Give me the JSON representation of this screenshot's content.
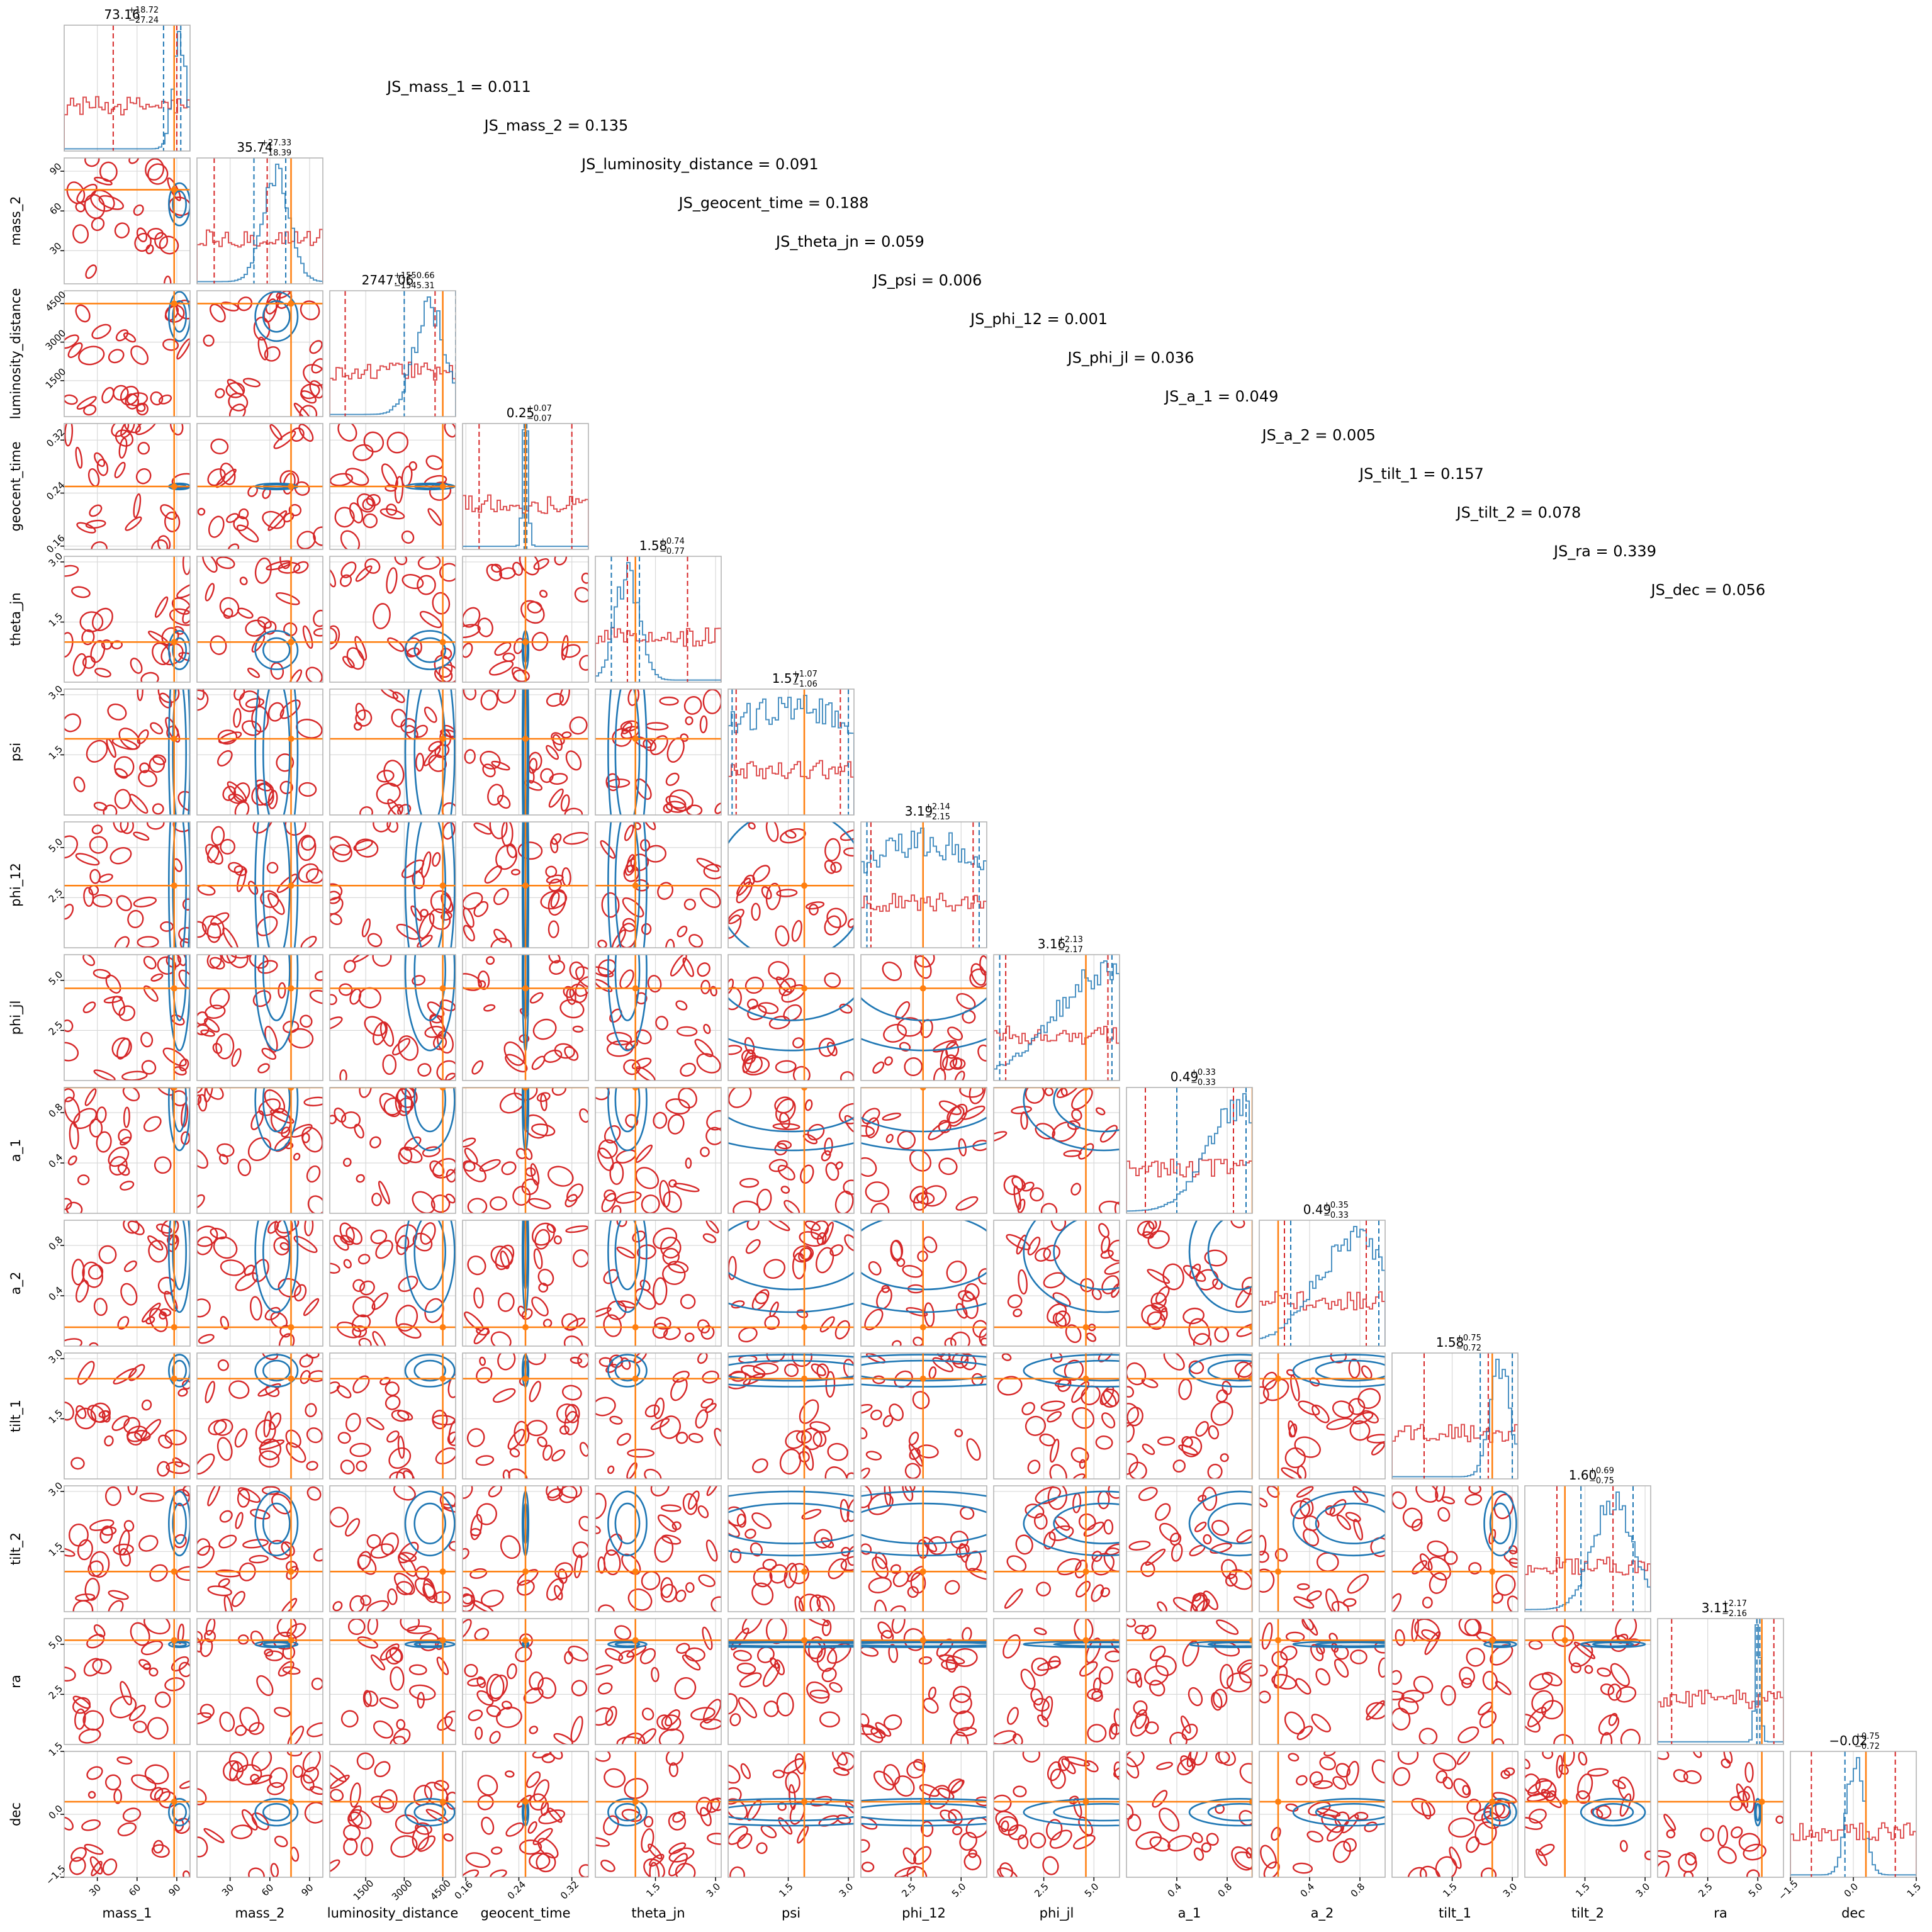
{
  "chart_data": {
    "type": "corner",
    "parameters": [
      "mass_1",
      "mass_2",
      "luminosity_distance",
      "geocent_time",
      "theta_jn",
      "psi",
      "phi_12",
      "phi_jl",
      "a_1",
      "a_2",
      "tilt_1",
      "tilt_2",
      "ra",
      "dec"
    ],
    "ranges": [
      [
        5,
        100
      ],
      [
        5,
        100
      ],
      [
        100,
        5000
      ],
      [
        0.155,
        0.345
      ],
      [
        0,
        3.14
      ],
      [
        0,
        3.14
      ],
      [
        0,
        6.28
      ],
      [
        0,
        6.28
      ],
      [
        0,
        1
      ],
      [
        0,
        1
      ],
      [
        0,
        3.14
      ],
      [
        0,
        3.14
      ],
      [
        0,
        6.28
      ],
      [
        -1.5,
        1.5
      ]
    ],
    "ticks": [
      [
        30,
        60,
        90
      ],
      [
        30,
        60,
        90
      ],
      [
        1500,
        3000,
        4500
      ],
      [
        0.16,
        0.24,
        0.32
      ],
      [
        1.5,
        3.0
      ],
      [
        1.5,
        3.0
      ],
      [
        2.5,
        5.0
      ],
      [
        2.5,
        5.0
      ],
      [
        0.4,
        0.8
      ],
      [
        0.4,
        0.8
      ],
      [
        1.5,
        3.0
      ],
      [
        1.5,
        3.0
      ],
      [
        2.5,
        5.0
      ],
      [
        -1.5,
        0.0,
        1.5
      ]
    ],
    "tick_labels": [
      [
        "30",
        "60",
        "90"
      ],
      [
        "30",
        "60",
        "90"
      ],
      [
        "1500",
        "3000",
        "4500"
      ],
      [
        "0.16",
        "0.24",
        "0.32"
      ],
      [
        "1.5",
        "3.0"
      ],
      [
        "1.5",
        "3.0"
      ],
      [
        "2.5",
        "5.0"
      ],
      [
        "2.5",
        "5.0"
      ],
      [
        "0.4",
        "0.8"
      ],
      [
        "0.4",
        "0.8"
      ],
      [
        "1.5",
        "3.0"
      ],
      [
        "1.5",
        "3.0"
      ],
      [
        "2.5",
        "5.0"
      ],
      [
        "−1.5",
        "0.0",
        "1.5"
      ]
    ],
    "titles": [
      {
        "median": "73.16",
        "plus": "+18.72",
        "minus": "−27.24"
      },
      {
        "median": "35.74",
        "plus": "+27.33",
        "minus": "−18.39"
      },
      {
        "median": "2747.06",
        "plus": "+1550.66",
        "minus": "−1545.31"
      },
      {
        "median": "0.25",
        "plus": "+0.07",
        "minus": "−0.07"
      },
      {
        "median": "1.58",
        "plus": "+0.74",
        "minus": "−0.77"
      },
      {
        "median": "1.57",
        "plus": "+1.07",
        "minus": "−1.06"
      },
      {
        "median": "3.19",
        "plus": "+2.14",
        "minus": "−2.15"
      },
      {
        "median": "3.16",
        "plus": "+2.13",
        "minus": "−2.17"
      },
      {
        "median": "0.49",
        "plus": "+0.33",
        "minus": "−0.33"
      },
      {
        "median": "0.49",
        "plus": "+0.35",
        "minus": "−0.33"
      },
      {
        "median": "1.58",
        "plus": "+0.75",
        "minus": "−0.72"
      },
      {
        "median": "1.60",
        "plus": "+0.69",
        "minus": "−0.75"
      },
      {
        "median": "3.11",
        "plus": "+2.17",
        "minus": "−2.16"
      },
      {
        "median": "−0.02",
        "plus": "+0.75",
        "minus": "−0.72"
      }
    ],
    "truths": [
      88,
      76,
      4500,
      0.25,
      1.0,
      1.9,
      3.1,
      4.6,
      1.0,
      0.15,
      2.5,
      1.0,
      5.2,
      0.3
    ],
    "blue_posterior": {
      "centers": [
        92,
        65,
        4000,
        0.25,
        0.8,
        1.57,
        3.14,
        5.5,
        0.9,
        0.75,
        2.7,
        2.2,
        5.0,
        0.05
      ],
      "widths": [
        5,
        10,
        600,
        0.002,
        0.3,
        2.5,
        4,
        2.5,
        0.25,
        0.3,
        0.25,
        0.5,
        0.05,
        0.2
      ]
    },
    "blue_quantiles": [
      [
        80,
        93
      ],
      [
        48,
        72
      ],
      [
        3000,
        5000
      ],
      [
        0.248,
        0.252
      ],
      [
        0.4,
        1.1
      ],
      [
        0.1,
        3.0
      ],
      [
        0.3,
        5.9
      ],
      [
        0.3,
        5.9
      ],
      [
        0.4,
        0.95
      ],
      [
        0.25,
        0.95
      ],
      [
        2.2,
        3.0
      ],
      [
        1.4,
        2.7
      ],
      [
        4.95,
        5.1
      ],
      [
        -0.2,
        0.3
      ]
    ],
    "red_quantiles": [
      [
        42,
        90
      ],
      [
        18,
        58
      ],
      [
        700,
        4200
      ],
      [
        0.18,
        0.32
      ],
      [
        0.8,
        2.3
      ],
      [
        0.2,
        2.8
      ],
      [
        0.5,
        5.6
      ],
      [
        0.6,
        5.7
      ],
      [
        0.15,
        0.85
      ],
      [
        0.2,
        0.85
      ],
      [
        0.8,
        2.4
      ],
      [
        0.8,
        2.2
      ],
      [
        0.7,
        5.8
      ],
      [
        -1.0,
        1.0
      ]
    ],
    "js_labels": [
      "JS_mass_1 = 0.011",
      "JS_mass_2 = 0.135",
      "JS_luminosity_distance = 0.091",
      "JS_geocent_time = 0.188",
      "JS_theta_jn = 0.059",
      "JS_psi = 0.006",
      "JS_phi_12 = 0.001",
      "JS_phi_jl = 0.036",
      "JS_a_1 = 0.049",
      "JS_a_2 = 0.005",
      "JS_tilt_1 = 0.157",
      "JS_tilt_2 = 0.078",
      "JS_ra = 0.339",
      "JS_dec = 0.056"
    ],
    "colors": {
      "red": "#d62728",
      "blue": "#1f77b4",
      "truth": "#ff7f0e",
      "grid": "#d9d9d9",
      "frame": "#b0b0b0"
    },
    "grid": true
  }
}
